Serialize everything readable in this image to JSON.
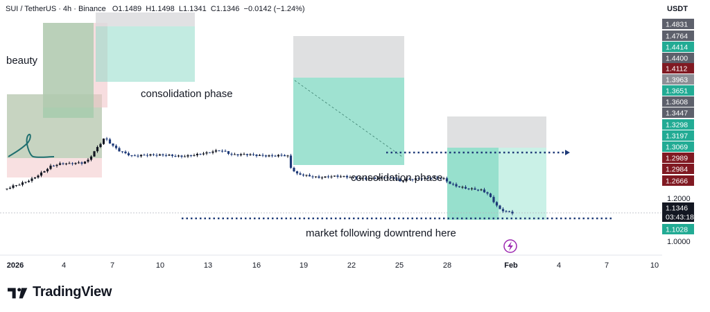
{
  "header": {
    "symbol": "SUI / TetherUS · 4h · Binance",
    "open": "O1.1489",
    "high": "H1.1498",
    "low": "L1.1341",
    "close": "C1.1346",
    "change": "−0.0142 (−1.24%)"
  },
  "currency": "USDT",
  "brand": "TradingView",
  "chart_data": {
    "type": "candlestick",
    "x_ticks": [
      "2026",
      "4",
      "7",
      "10",
      "13",
      "16",
      "19",
      "22",
      "25",
      "28",
      "Feb",
      "4",
      "7",
      "10"
    ],
    "axis_plain_labels": [
      "1.2000",
      "1.0000"
    ],
    "price_tags": [
      {
        "value": "1.4831",
        "color": "#5d606b"
      },
      {
        "value": "1.4764",
        "color": "#5d606b"
      },
      {
        "value": "1.4414",
        "color": "#22ab94"
      },
      {
        "value": "1.4400",
        "color": "#5d606b"
      },
      {
        "value": "1.4112",
        "color": "#801922"
      },
      {
        "value": "1.3963",
        "color": "#8d8f96"
      },
      {
        "value": "1.3651",
        "color": "#22ab94"
      },
      {
        "value": "1.3608",
        "color": "#5d606b"
      },
      {
        "value": "1.3447",
        "color": "#5d606b"
      },
      {
        "value": "1.3298",
        "color": "#22ab94"
      },
      {
        "value": "1.3197",
        "color": "#22ab94"
      },
      {
        "value": "1.3069",
        "color": "#22ab94"
      },
      {
        "value": "1.2989",
        "color": "#801922"
      },
      {
        "value": "1.2984",
        "color": "#801922"
      },
      {
        "value": "1.2666",
        "color": "#801922"
      },
      {
        "value": "1.1346",
        "color": "#131722"
      },
      {
        "value": "03:43:18",
        "color": "#131722"
      },
      {
        "value": "1.1028",
        "color": "#22ab94"
      }
    ],
    "annotations": [
      {
        "text": "beauty"
      },
      {
        "text": "consolidation phase"
      },
      {
        "text": "consolidation phase"
      },
      {
        "text": "market following downtrend here"
      }
    ],
    "price_path": [
      [
        0,
        1.245
      ],
      [
        2,
        1.255
      ],
      [
        4,
        1.262
      ],
      [
        6,
        1.275
      ],
      [
        8,
        1.29
      ],
      [
        10,
        1.31
      ],
      [
        12,
        1.33
      ],
      [
        14,
        1.35
      ],
      [
        16,
        1.355
      ],
      [
        18,
        1.36
      ],
      [
        20,
        1.358
      ],
      [
        22,
        1.364
      ],
      [
        24,
        1.366
      ],
      [
        26,
        1.38
      ],
      [
        28,
        1.42
      ],
      [
        30,
        1.455
      ],
      [
        31,
        1.475
      ],
      [
        32,
        1.47
      ],
      [
        34,
        1.44
      ],
      [
        36,
        1.42
      ],
      [
        38,
        1.41
      ],
      [
        40,
        1.4
      ],
      [
        44,
        1.402
      ],
      [
        48,
        1.398
      ],
      [
        52,
        1.4
      ],
      [
        56,
        1.398
      ],
      [
        60,
        1.4
      ],
      [
        64,
        1.408
      ],
      [
        68,
        1.425
      ],
      [
        70,
        1.42
      ],
      [
        72,
        1.405
      ],
      [
        76,
        1.402
      ],
      [
        80,
        1.398
      ],
      [
        84,
        1.4
      ],
      [
        88,
        1.402
      ],
      [
        90,
        1.395
      ],
      [
        91,
        1.34
      ],
      [
        93,
        1.31
      ],
      [
        96,
        1.305
      ],
      [
        100,
        1.3
      ],
      [
        104,
        1.302
      ],
      [
        108,
        1.298
      ],
      [
        112,
        1.295
      ],
      [
        116,
        1.295
      ],
      [
        120,
        1.294
      ],
      [
        124,
        1.292
      ],
      [
        126,
        1.278
      ],
      [
        128,
        1.29
      ],
      [
        132,
        1.294
      ],
      [
        136,
        1.293
      ],
      [
        140,
        1.289
      ],
      [
        142,
        1.27
      ],
      [
        144,
        1.26
      ],
      [
        148,
        1.245
      ],
      [
        152,
        1.235
      ],
      [
        154,
        1.22
      ],
      [
        156,
        1.185
      ],
      [
        158,
        1.15
      ],
      [
        160,
        1.142
      ],
      [
        162,
        1.134
      ]
    ],
    "bar_period_hours": 4
  }
}
